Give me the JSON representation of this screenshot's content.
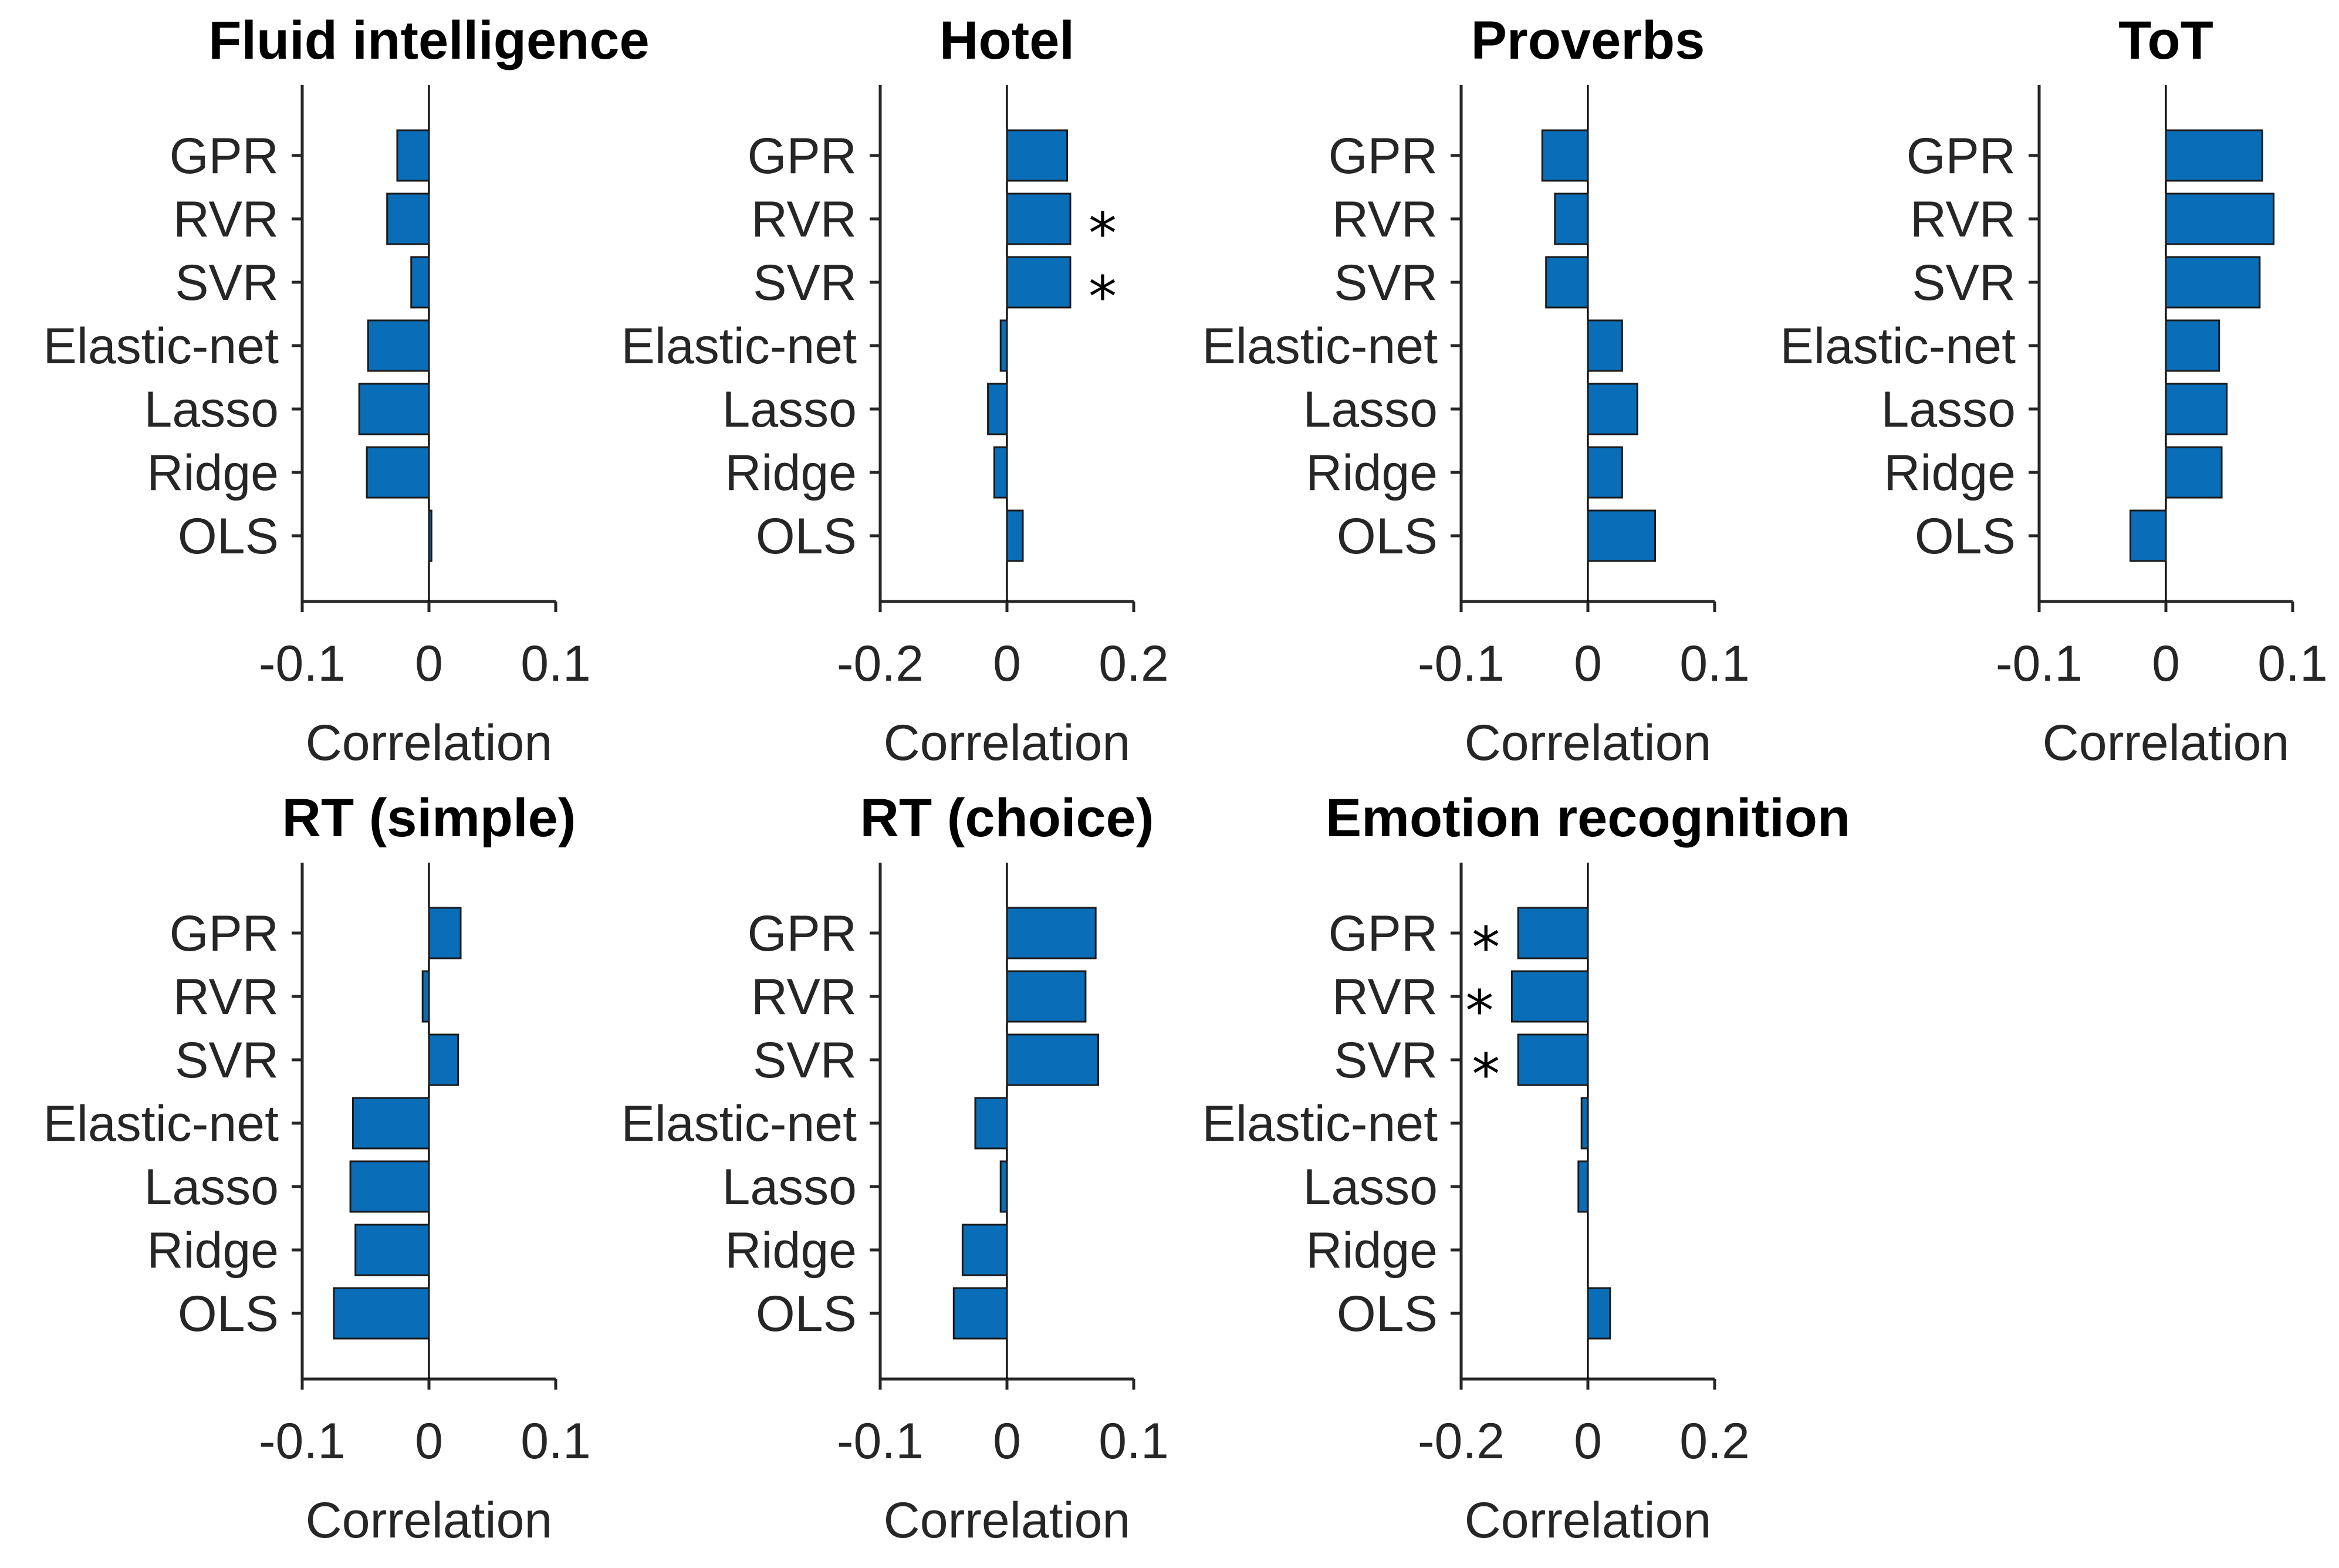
{
  "chart_data": [
    {
      "type": "bar",
      "orientation": "horizontal",
      "title": "Fluid intelligence",
      "xlabel": "Correlation",
      "categories": [
        "GPR",
        "RVR",
        "SVR",
        "Elastic-net",
        "Lasso",
        "Ridge",
        "OLS"
      ],
      "values": [
        -0.025,
        -0.033,
        -0.014,
        -0.048,
        -0.055,
        -0.049,
        0.002
      ],
      "significant": [
        false,
        false,
        false,
        false,
        false,
        false,
        false
      ],
      "xlim": [
        -0.1,
        0.1
      ],
      "xticks": [
        -0.1,
        0,
        0.1
      ],
      "xtick_labels": [
        "-0.1",
        "0",
        "0.1"
      ],
      "grid": false,
      "bar_color": "#0a6db8"
    },
    {
      "type": "bar",
      "orientation": "horizontal",
      "title": "Hotel",
      "xlabel": "Correlation",
      "categories": [
        "GPR",
        "RVR",
        "SVR",
        "Elastic-net",
        "Lasso",
        "Ridge",
        "OLS"
      ],
      "values": [
        0.095,
        0.1,
        0.1,
        -0.01,
        -0.03,
        -0.02,
        0.025
      ],
      "significant": [
        false,
        true,
        true,
        false,
        false,
        false,
        false
      ],
      "xlim": [
        -0.2,
        0.2
      ],
      "xticks": [
        -0.2,
        0,
        0.2
      ],
      "xtick_labels": [
        "-0.2",
        "0",
        "0.2"
      ],
      "grid": false,
      "bar_color": "#0a6db8"
    },
    {
      "type": "bar",
      "orientation": "horizontal",
      "title": "Proverbs",
      "xlabel": "Correlation",
      "categories": [
        "GPR",
        "RVR",
        "SVR",
        "Elastic-net",
        "Lasso",
        "Ridge",
        "OLS"
      ],
      "values": [
        -0.036,
        -0.026,
        -0.033,
        0.027,
        0.039,
        0.027,
        0.053
      ],
      "significant": [
        false,
        false,
        false,
        false,
        false,
        false,
        false
      ],
      "xlim": [
        -0.1,
        0.1
      ],
      "xticks": [
        -0.1,
        0,
        0.1
      ],
      "xtick_labels": [
        "-0.1",
        "0",
        "0.1"
      ],
      "grid": false,
      "bar_color": "#0a6db8"
    },
    {
      "type": "bar",
      "orientation": "horizontal",
      "title": "ToT",
      "xlabel": "Correlation",
      "categories": [
        "GPR",
        "RVR",
        "SVR",
        "Elastic-net",
        "Lasso",
        "Ridge",
        "OLS"
      ],
      "values": [
        0.076,
        0.085,
        0.074,
        0.042,
        0.048,
        0.044,
        -0.028
      ],
      "significant": [
        false,
        false,
        false,
        false,
        false,
        false,
        false
      ],
      "xlim": [
        -0.1,
        0.1
      ],
      "xticks": [
        -0.1,
        0,
        0.1
      ],
      "xtick_labels": [
        "-0.1",
        "0",
        "0.1"
      ],
      "grid": false,
      "bar_color": "#0a6db8"
    },
    {
      "type": "bar",
      "orientation": "horizontal",
      "title": "RT (simple)",
      "xlabel": "Correlation",
      "categories": [
        "GPR",
        "RVR",
        "SVR",
        "Elastic-net",
        "Lasso",
        "Ridge",
        "OLS"
      ],
      "values": [
        0.025,
        -0.005,
        0.023,
        -0.06,
        -0.062,
        -0.058,
        -0.075
      ],
      "significant": [
        false,
        false,
        false,
        false,
        false,
        false,
        false
      ],
      "xlim": [
        -0.1,
        0.1
      ],
      "xticks": [
        -0.1,
        0,
        0.1
      ],
      "xtick_labels": [
        "-0.1",
        "0",
        "0.1"
      ],
      "grid": false,
      "bar_color": "#0a6db8"
    },
    {
      "type": "bar",
      "orientation": "horizontal",
      "title": "RT (choice)",
      "xlabel": "Correlation",
      "categories": [
        "GPR",
        "RVR",
        "SVR",
        "Elastic-net",
        "Lasso",
        "Ridge",
        "OLS"
      ],
      "values": [
        0.07,
        0.062,
        0.072,
        -0.025,
        -0.005,
        -0.035,
        -0.042
      ],
      "significant": [
        false,
        false,
        false,
        false,
        false,
        false,
        false
      ],
      "xlim": [
        -0.1,
        0.1
      ],
      "xticks": [
        -0.1,
        0,
        0.1
      ],
      "xtick_labels": [
        "-0.1",
        "0",
        "0.1"
      ],
      "grid": false,
      "bar_color": "#0a6db8"
    },
    {
      "type": "bar",
      "orientation": "horizontal",
      "title": "Emotion recognition",
      "xlabel": "Correlation",
      "categories": [
        "GPR",
        "RVR",
        "SVR",
        "Elastic-net",
        "Lasso",
        "Ridge",
        "OLS"
      ],
      "values": [
        -0.11,
        -0.12,
        -0.11,
        -0.01,
        -0.015,
        0,
        0.035
      ],
      "significant": [
        true,
        true,
        true,
        false,
        false,
        false,
        false
      ],
      "xlim": [
        -0.2,
        0.2
      ],
      "xticks": [
        -0.2,
        0,
        0.2
      ],
      "xtick_labels": [
        "-0.2",
        "0",
        "0.2"
      ],
      "grid": false,
      "bar_color": "#0a6db8"
    }
  ],
  "significance_marker": "*"
}
